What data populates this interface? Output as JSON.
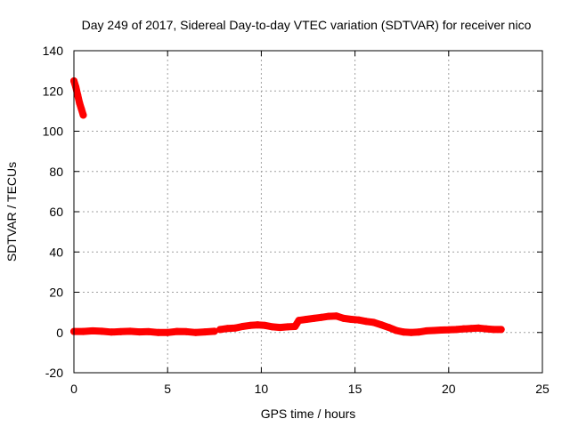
{
  "chart_data": {
    "type": "scatter",
    "title": "Day 249 of 2017, Sidereal Day-to-day VTEC variation (SDTVAR) for receiver nico",
    "xlabel": "GPS time / hours",
    "ylabel": "SDTVAR / TECUs",
    "xlim": [
      0,
      25
    ],
    "ylim": [
      -20,
      140
    ],
    "xticks": [
      "0",
      "5",
      "10",
      "15",
      "20",
      "25"
    ],
    "yticks": [
      "-20",
      "0",
      "20",
      "40",
      "60",
      "80",
      "100",
      "120",
      "140"
    ],
    "grid": true,
    "series_color": "#ff0000",
    "segments": [
      {
        "x": [
          0.0,
          0.1,
          0.2,
          0.3,
          0.4,
          0.5
        ],
        "y": [
          125,
          122,
          118,
          114,
          111,
          108
        ]
      },
      {
        "x": [
          0.0,
          0.5,
          1.0,
          1.5,
          2.0,
          2.5,
          3.0,
          3.5,
          4.0,
          4.5,
          5.0,
          5.5,
          6.0,
          6.5,
          7.0,
          7.5
        ],
        "y": [
          0.5,
          0.5,
          0.8,
          0.6,
          0.2,
          0.4,
          0.6,
          0.3,
          0.4,
          0.0,
          0.0,
          0.5,
          0.4,
          0.0,
          0.3,
          0.6
        ]
      },
      {
        "x": [
          7.8,
          8.2,
          8.6,
          9.0,
          9.4,
          9.8,
          10.2,
          10.6,
          11.0,
          11.4,
          11.8,
          12.0,
          12.4,
          12.8,
          13.2,
          13.6,
          14.0,
          14.4,
          14.8,
          15.2,
          15.6,
          16.0,
          16.4,
          16.8,
          17.2,
          17.6,
          18.0,
          18.4,
          18.8,
          19.2,
          19.6,
          20.0,
          20.4,
          20.8,
          21.2,
          21.6,
          22.0,
          22.4,
          22.8
        ],
        "y": [
          1.5,
          2.0,
          2.2,
          3.0,
          3.5,
          3.8,
          3.5,
          2.8,
          2.5,
          2.8,
          3.0,
          6.0,
          6.5,
          7.0,
          7.5,
          8.0,
          8.2,
          7.0,
          6.5,
          6.2,
          5.5,
          5.0,
          3.8,
          2.5,
          1.0,
          0.2,
          0.0,
          0.2,
          0.8,
          1.0,
          1.2,
          1.3,
          1.5,
          1.8,
          2.0,
          2.2,
          1.8,
          1.5,
          1.5
        ]
      }
    ]
  }
}
